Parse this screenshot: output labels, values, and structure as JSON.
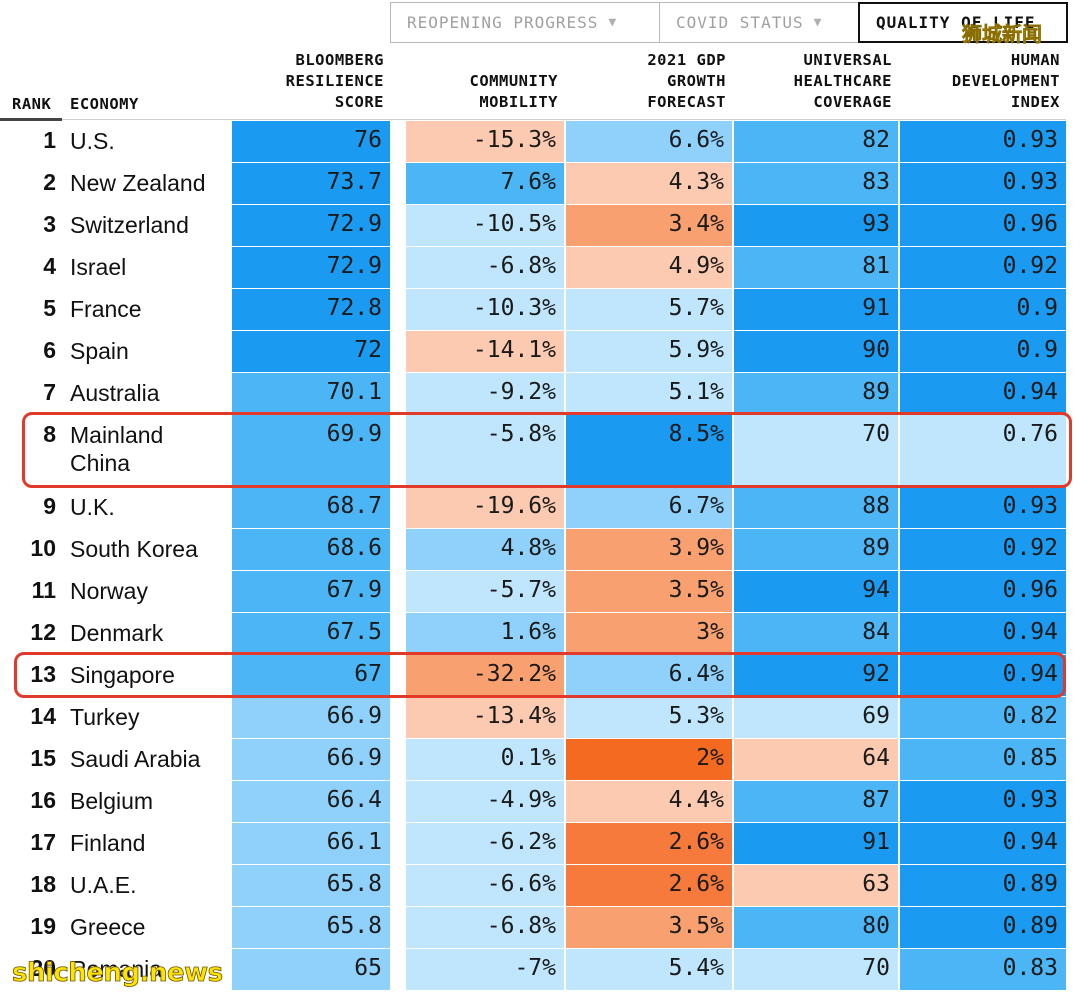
{
  "tabs": [
    {
      "label": "REOPENING PROGRESS",
      "active": false
    },
    {
      "label": "COVID STATUS",
      "active": false
    },
    {
      "label": "QUALITY OF LIFE",
      "active": true
    }
  ],
  "filter_icon": "▼",
  "watermarks": {
    "top": "狮城新闻",
    "bottom": "shicheng.news"
  },
  "headers": {
    "rank": "RANK",
    "economy": "ECONOMY",
    "brs": [
      "BLOOMBERG",
      "RESILIENCE",
      "SCORE"
    ],
    "mobility": [
      "COMMUNITY",
      "MOBILITY"
    ],
    "gdp": [
      "2021 GDP",
      "GROWTH",
      "FORECAST"
    ],
    "uhc": [
      "UNIVERSAL",
      "HEALTHCARE",
      "COVERAGE"
    ],
    "hdi": [
      "HUMAN",
      "DEVELOPMENT",
      "INDEX"
    ]
  },
  "colors": {
    "blue_dark": "#1a9af0",
    "blue_mid": "#4cb5f5",
    "blue_light": "#8fd1fa",
    "blue_pale": "#bfe6fc",
    "orange_pale": "#fccab0",
    "orange_mid": "#f9a070",
    "orange_dark": "#f57a3c",
    "orange_strong": "#f46a20",
    "highlight": "#e23a2a"
  },
  "rows": [
    {
      "rank": "1",
      "economy": "U.S.",
      "brs": "76",
      "mobility": "-15.3%",
      "gdp": "6.6%",
      "uhc": "82",
      "hdi": "0.93",
      "tones": [
        "blue_dark",
        "orange_pale",
        "blue_light",
        "blue_mid",
        "blue_dark"
      ]
    },
    {
      "rank": "2",
      "economy": "New Zealand",
      "brs": "73.7",
      "mobility": "7.6%",
      "gdp": "4.3%",
      "uhc": "83",
      "hdi": "0.93",
      "tones": [
        "blue_dark",
        "blue_mid",
        "orange_pale",
        "blue_mid",
        "blue_dark"
      ]
    },
    {
      "rank": "3",
      "economy": "Switzerland",
      "brs": "72.9",
      "mobility": "-10.5%",
      "gdp": "3.4%",
      "uhc": "93",
      "hdi": "0.96",
      "tones": [
        "blue_dark",
        "blue_pale",
        "orange_mid",
        "blue_dark",
        "blue_dark"
      ]
    },
    {
      "rank": "4",
      "economy": "Israel",
      "brs": "72.9",
      "mobility": "-6.8%",
      "gdp": "4.9%",
      "uhc": "81",
      "hdi": "0.92",
      "tones": [
        "blue_dark",
        "blue_pale",
        "orange_pale",
        "blue_mid",
        "blue_dark"
      ]
    },
    {
      "rank": "5",
      "economy": "France",
      "brs": "72.8",
      "mobility": "-10.3%",
      "gdp": "5.7%",
      "uhc": "91",
      "hdi": "0.9",
      "tones": [
        "blue_dark",
        "blue_pale",
        "blue_pale",
        "blue_dark",
        "blue_dark"
      ]
    },
    {
      "rank": "6",
      "economy": "Spain",
      "brs": "72",
      "mobility": "-14.1%",
      "gdp": "5.9%",
      "uhc": "90",
      "hdi": "0.9",
      "tones": [
        "blue_dark",
        "orange_pale",
        "blue_pale",
        "blue_dark",
        "blue_dark"
      ]
    },
    {
      "rank": "7",
      "economy": "Australia",
      "brs": "70.1",
      "mobility": "-9.2%",
      "gdp": "5.1%",
      "uhc": "89",
      "hdi": "0.94",
      "tones": [
        "blue_mid",
        "blue_pale",
        "blue_pale",
        "blue_mid",
        "blue_dark"
      ]
    },
    {
      "rank": "8",
      "economy": "Mainland China",
      "brs": "69.9",
      "mobility": "-5.8%",
      "gdp": "8.5%",
      "uhc": "70",
      "hdi": "0.76",
      "tones": [
        "blue_mid",
        "blue_pale",
        "blue_dark",
        "blue_pale",
        "blue_pale"
      ],
      "tall": true,
      "highlight": true
    },
    {
      "rank": "9",
      "economy": "U.K.",
      "brs": "68.7",
      "mobility": "-19.6%",
      "gdp": "6.7%",
      "uhc": "88",
      "hdi": "0.93",
      "tones": [
        "blue_mid",
        "orange_pale",
        "blue_light",
        "blue_mid",
        "blue_dark"
      ]
    },
    {
      "rank": "10",
      "economy": "South Korea",
      "brs": "68.6",
      "mobility": "4.8%",
      "gdp": "3.9%",
      "uhc": "89",
      "hdi": "0.92",
      "tones": [
        "blue_mid",
        "blue_light",
        "orange_mid",
        "blue_mid",
        "blue_dark"
      ]
    },
    {
      "rank": "11",
      "economy": "Norway",
      "brs": "67.9",
      "mobility": "-5.7%",
      "gdp": "3.5%",
      "uhc": "94",
      "hdi": "0.96",
      "tones": [
        "blue_mid",
        "blue_pale",
        "orange_mid",
        "blue_dark",
        "blue_dark"
      ]
    },
    {
      "rank": "12",
      "economy": "Denmark",
      "brs": "67.5",
      "mobility": "1.6%",
      "gdp": "3%",
      "uhc": "84",
      "hdi": "0.94",
      "tones": [
        "blue_mid",
        "blue_light",
        "orange_mid",
        "blue_mid",
        "blue_dark"
      ]
    },
    {
      "rank": "13",
      "economy": "Singapore",
      "brs": "67",
      "mobility": "-32.2%",
      "gdp": "6.4%",
      "uhc": "92",
      "hdi": "0.94",
      "tones": [
        "blue_mid",
        "orange_mid",
        "blue_light",
        "blue_dark",
        "blue_dark"
      ],
      "highlight": true
    },
    {
      "rank": "14",
      "economy": "Turkey",
      "brs": "66.9",
      "mobility": "-13.4%",
      "gdp": "5.3%",
      "uhc": "69",
      "hdi": "0.82",
      "tones": [
        "blue_light",
        "orange_pale",
        "blue_pale",
        "blue_pale",
        "blue_mid"
      ]
    },
    {
      "rank": "15",
      "economy": "Saudi Arabia",
      "brs": "66.9",
      "mobility": "0.1%",
      "gdp": "2%",
      "uhc": "64",
      "hdi": "0.85",
      "tones": [
        "blue_light",
        "blue_pale",
        "orange_strong",
        "orange_pale",
        "blue_mid"
      ]
    },
    {
      "rank": "16",
      "economy": "Belgium",
      "brs": "66.4",
      "mobility": "-4.9%",
      "gdp": "4.4%",
      "uhc": "87",
      "hdi": "0.93",
      "tones": [
        "blue_light",
        "blue_pale",
        "orange_pale",
        "blue_mid",
        "blue_dark"
      ]
    },
    {
      "rank": "17",
      "economy": "Finland",
      "brs": "66.1",
      "mobility": "-6.2%",
      "gdp": "2.6%",
      "uhc": "91",
      "hdi": "0.94",
      "tones": [
        "blue_light",
        "blue_pale",
        "orange_dark",
        "blue_dark",
        "blue_dark"
      ]
    },
    {
      "rank": "18",
      "economy": "U.A.E.",
      "brs": "65.8",
      "mobility": "-6.6%",
      "gdp": "2.6%",
      "uhc": "63",
      "hdi": "0.89",
      "tones": [
        "blue_light",
        "blue_pale",
        "orange_dark",
        "orange_pale",
        "blue_dark"
      ]
    },
    {
      "rank": "19",
      "economy": "Greece",
      "brs": "65.8",
      "mobility": "-6.8%",
      "gdp": "3.5%",
      "uhc": "80",
      "hdi": "0.89",
      "tones": [
        "blue_light",
        "blue_pale",
        "orange_mid",
        "blue_mid",
        "blue_dark"
      ]
    },
    {
      "rank": "20",
      "economy": "Romania",
      "brs": "65",
      "mobility": "-7%",
      "gdp": "5.4%",
      "uhc": "70",
      "hdi": "0.83",
      "tones": [
        "blue_light",
        "blue_pale",
        "blue_pale",
        "blue_pale",
        "blue_mid"
      ]
    }
  ]
}
